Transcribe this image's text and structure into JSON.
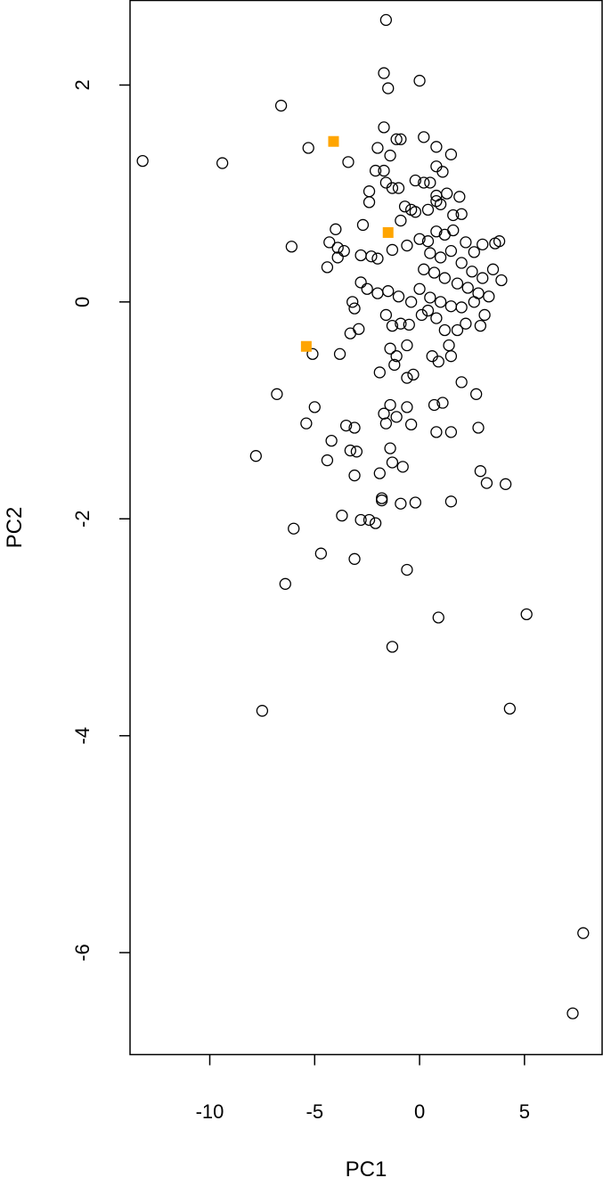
{
  "chart_data": {
    "type": "scatter",
    "title": "",
    "xlabel": "PC1",
    "ylabel": "PC2",
    "xlim": [
      -13.8,
      8.7
    ],
    "ylim": [
      -6.94,
      2.78
    ],
    "xticks": [
      -10,
      -5,
      0,
      5
    ],
    "yticks": [
      -6,
      -4,
      -2,
      0,
      2
    ],
    "grid": false,
    "legend": "none",
    "colors": {
      "points": "#000000",
      "highlight": "#FFA500"
    },
    "series": [
      {
        "marker": "open-circle",
        "points": [
          [
            -13.2,
            1.3
          ],
          [
            -9.4,
            1.28
          ],
          [
            -6.6,
            1.81
          ],
          [
            -6.1,
            0.51
          ],
          [
            -5.3,
            1.42
          ],
          [
            -3.4,
            1.29
          ],
          [
            -1.6,
            2.6
          ],
          [
            -1.7,
            2.11
          ],
          [
            -1.5,
            1.97
          ],
          [
            0.0,
            2.04
          ],
          [
            -1.7,
            1.61
          ],
          [
            -1.1,
            1.5
          ],
          [
            -0.9,
            1.5
          ],
          [
            -2.0,
            1.42
          ],
          [
            0.2,
            1.52
          ],
          [
            0.8,
            1.43
          ],
          [
            -1.4,
            1.35
          ],
          [
            1.5,
            1.36
          ],
          [
            -1.7,
            1.21
          ],
          [
            -2.1,
            1.21
          ],
          [
            -1.6,
            1.1
          ],
          [
            -1.3,
            1.05
          ],
          [
            -1.0,
            1.05
          ],
          [
            -0.2,
            1.12
          ],
          [
            0.2,
            1.1
          ],
          [
            0.5,
            1.1
          ],
          [
            0.8,
            1.25
          ],
          [
            1.1,
            1.2
          ],
          [
            -2.4,
            1.02
          ],
          [
            -2.4,
            0.92
          ],
          [
            0.8,
            0.98
          ],
          [
            1.3,
            1.0
          ],
          [
            1.9,
            0.97
          ],
          [
            0.8,
            0.93
          ],
          [
            1.0,
            0.9
          ],
          [
            -0.7,
            0.88
          ],
          [
            -0.4,
            0.85
          ],
          [
            -0.2,
            0.83
          ],
          [
            0.4,
            0.85
          ],
          [
            1.6,
            0.8
          ],
          [
            2.0,
            0.81
          ],
          [
            -0.9,
            0.75
          ],
          [
            -2.7,
            0.71
          ],
          [
            -4.0,
            0.67
          ],
          [
            -4.3,
            0.55
          ],
          [
            -3.9,
            0.5
          ],
          [
            -3.6,
            0.47
          ],
          [
            -3.9,
            0.41
          ],
          [
            -4.4,
            0.32
          ],
          [
            -2.8,
            0.43
          ],
          [
            -2.3,
            0.42
          ],
          [
            -2.0,
            0.4
          ],
          [
            -1.3,
            0.48
          ],
          [
            -0.6,
            0.52
          ],
          [
            0.0,
            0.58
          ],
          [
            0.4,
            0.56
          ],
          [
            0.8,
            0.65
          ],
          [
            1.2,
            0.62
          ],
          [
            1.6,
            0.66
          ],
          [
            2.2,
            0.55
          ],
          [
            2.6,
            0.46
          ],
          [
            3.0,
            0.53
          ],
          [
            3.6,
            0.54
          ],
          [
            3.8,
            0.56
          ],
          [
            3.5,
            0.3
          ],
          [
            3.9,
            0.2
          ],
          [
            0.5,
            0.45
          ],
          [
            1.0,
            0.41
          ],
          [
            1.5,
            0.47
          ],
          [
            2.0,
            0.36
          ],
          [
            2.5,
            0.28
          ],
          [
            3.0,
            0.22
          ],
          [
            0.2,
            0.3
          ],
          [
            0.7,
            0.27
          ],
          [
            1.2,
            0.22
          ],
          [
            1.8,
            0.17
          ],
          [
            2.3,
            0.13
          ],
          [
            2.8,
            0.08
          ],
          [
            3.3,
            0.05
          ],
          [
            0.0,
            0.12
          ],
          [
            0.5,
            0.04
          ],
          [
            1.0,
            0.0
          ],
          [
            1.5,
            -0.04
          ],
          [
            2.0,
            -0.05
          ],
          [
            2.6,
            0.0
          ],
          [
            3.1,
            -0.12
          ],
          [
            -0.4,
            0.0
          ],
          [
            -1.0,
            0.05
          ],
          [
            -1.5,
            0.1
          ],
          [
            -2.0,
            0.08
          ],
          [
            -2.5,
            0.12
          ],
          [
            -2.8,
            0.18
          ],
          [
            -3.2,
            0.0
          ],
          [
            -3.1,
            -0.06
          ],
          [
            -3.3,
            -0.29
          ],
          [
            -2.9,
            -0.25
          ],
          [
            -3.8,
            -0.48
          ],
          [
            -5.1,
            -0.48
          ],
          [
            -1.6,
            -0.12
          ],
          [
            -1.3,
            -0.22
          ],
          [
            -0.9,
            -0.2
          ],
          [
            -0.5,
            -0.21
          ],
          [
            0.1,
            -0.12
          ],
          [
            0.4,
            -0.08
          ],
          [
            0.8,
            -0.15
          ],
          [
            1.2,
            -0.26
          ],
          [
            1.8,
            -0.26
          ],
          [
            2.2,
            -0.2
          ],
          [
            2.9,
            -0.22
          ],
          [
            1.4,
            -0.4
          ],
          [
            1.5,
            -0.5
          ],
          [
            0.9,
            -0.55
          ],
          [
            0.6,
            -0.5
          ],
          [
            -0.6,
            -0.4
          ],
          [
            -1.1,
            -0.5
          ],
          [
            -1.2,
            -0.58
          ],
          [
            -1.4,
            -0.43
          ],
          [
            -0.6,
            -0.7
          ],
          [
            -0.3,
            -0.67
          ],
          [
            -1.9,
            -0.65
          ],
          [
            -6.8,
            -0.85
          ],
          [
            -5.0,
            -0.97
          ],
          [
            -1.4,
            -0.95
          ],
          [
            -0.6,
            -0.97
          ],
          [
            -1.7,
            -1.03
          ],
          [
            -1.1,
            -1.06
          ],
          [
            -1.6,
            -1.12
          ],
          [
            -0.4,
            -1.13
          ],
          [
            0.7,
            -0.95
          ],
          [
            1.1,
            -0.93
          ],
          [
            2.7,
            -0.85
          ],
          [
            2.0,
            -0.74
          ],
          [
            0.8,
            -1.2
          ],
          [
            1.5,
            -1.2
          ],
          [
            2.8,
            -1.16
          ],
          [
            -5.4,
            -1.12
          ],
          [
            -4.2,
            -1.28
          ],
          [
            -4.4,
            -1.46
          ],
          [
            -3.5,
            -1.14
          ],
          [
            -3.1,
            -1.16
          ],
          [
            -3.3,
            -1.37
          ],
          [
            -3.0,
            -1.38
          ],
          [
            -1.4,
            -1.35
          ],
          [
            -1.3,
            -1.48
          ],
          [
            -0.8,
            -1.52
          ],
          [
            -1.9,
            -1.58
          ],
          [
            -3.1,
            -1.6
          ],
          [
            -7.8,
            -1.42
          ],
          [
            -1.8,
            -1.81
          ],
          [
            -1.8,
            -1.83
          ],
          [
            -0.9,
            -1.86
          ],
          [
            -0.2,
            -1.85
          ],
          [
            1.5,
            -1.84
          ],
          [
            2.9,
            -1.56
          ],
          [
            3.2,
            -1.67
          ],
          [
            4.1,
            -1.68
          ],
          [
            -3.7,
            -1.97
          ],
          [
            -2.8,
            -2.01
          ],
          [
            -2.4,
            -2.01
          ],
          [
            -2.1,
            -2.04
          ],
          [
            -6.0,
            -2.09
          ],
          [
            -4.7,
            -2.32
          ],
          [
            -3.1,
            -2.37
          ],
          [
            -0.6,
            -2.47
          ],
          [
            -6.4,
            -2.6
          ],
          [
            0.9,
            -2.91
          ],
          [
            5.1,
            -2.88
          ],
          [
            -1.3,
            -3.18
          ],
          [
            -7.5,
            -3.77
          ],
          [
            4.3,
            -3.75
          ],
          [
            7.8,
            -5.82
          ],
          [
            7.3,
            -6.56
          ]
        ]
      },
      {
        "marker": "filled-square",
        "points": [
          [
            -4.1,
            1.48
          ],
          [
            -1.5,
            0.64
          ],
          [
            -5.4,
            -0.41
          ]
        ]
      }
    ]
  }
}
